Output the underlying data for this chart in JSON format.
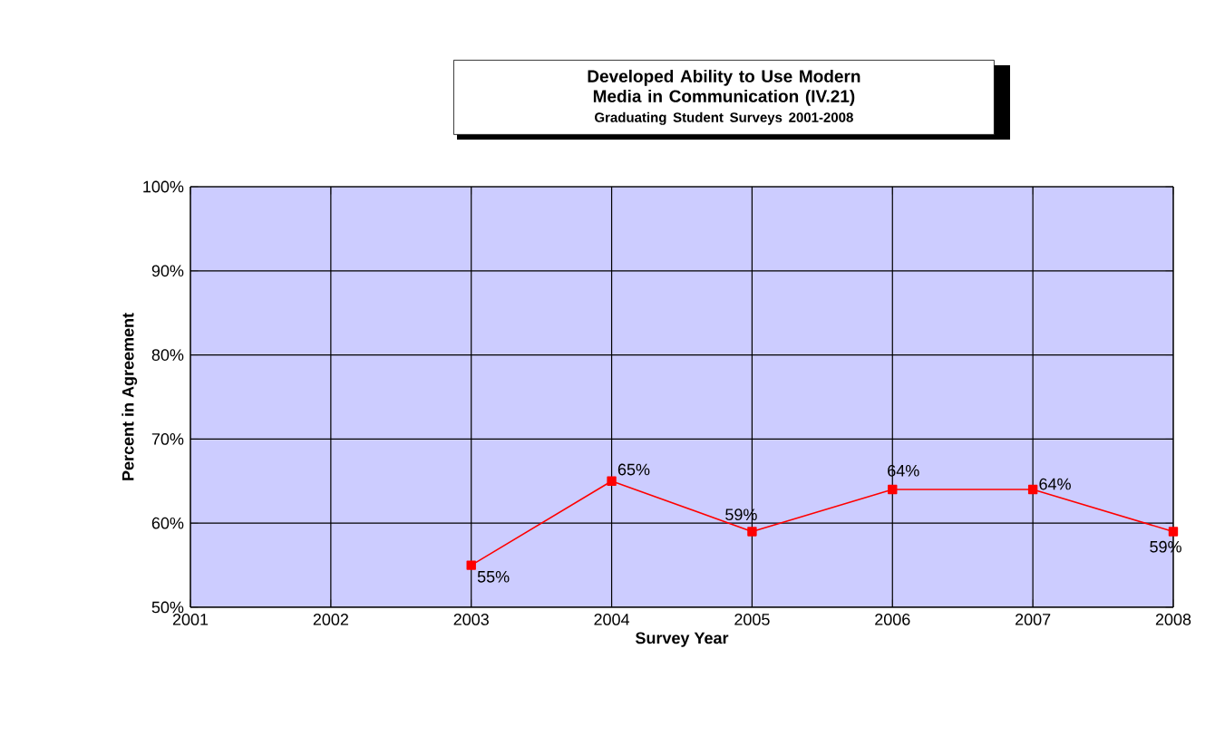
{
  "chart_data": {
    "type": "line",
    "title": "Developed Ability to Use Modern Media in Communication (IV.21)",
    "subtitle": "Graduating Student Surveys 2001-2008",
    "xlabel": "Survey Year",
    "ylabel": "Percent in Agreement",
    "x": [
      2003,
      2004,
      2005,
      2006,
      2007,
      2008
    ],
    "series": [
      {
        "color": "#ff0000",
        "values": [
          55,
          65,
          59,
          64,
          64,
          59
        ],
        "value_labels": [
          "55%",
          "65%",
          "59%",
          "64%",
          "64%",
          "59%"
        ]
      }
    ],
    "xlim": [
      2001,
      2008
    ],
    "xticks": [
      2001,
      2002,
      2003,
      2004,
      2005,
      2006,
      2007,
      2008
    ],
    "ylim": [
      50,
      100
    ],
    "yticks": [
      {
        "value": 50,
        "label": "50%"
      },
      {
        "value": 60,
        "label": "60%"
      },
      {
        "value": 70,
        "label": "70%"
      },
      {
        "value": 80,
        "label": "80%"
      },
      {
        "value": 90,
        "label": "90%"
      },
      {
        "value": 100,
        "label": "100%"
      }
    ],
    "grid": true,
    "marker": "square",
    "line_style": "solid"
  }
}
